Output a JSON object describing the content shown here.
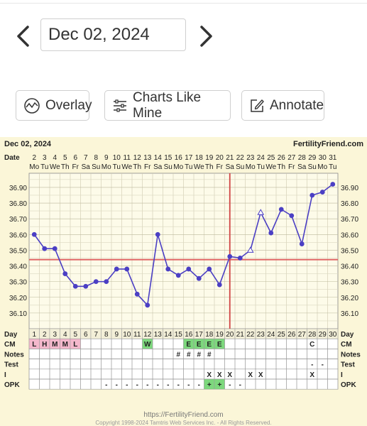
{
  "nav": {
    "date_value": "Dec 02, 2024",
    "prev_icon": "chevron-left-icon",
    "next_icon": "chevron-right-icon"
  },
  "toolbar": {
    "overlay_label": "Overlay",
    "overlay_icon": "overlay-chart-icon",
    "charts_like_mine_label": "Charts Like Mine",
    "charts_like_mine_icon": "sliders-icon",
    "annotate_label": "Annotate",
    "annotate_icon": "edit-icon"
  },
  "colors": {
    "chart_bg": "#fbf6d8",
    "line": "#4b3fc4",
    "coverline": "#e06060",
    "ovulation_line": "#d04545",
    "menses": "#f4b8cc",
    "fertile": "#7dd87d"
  },
  "chart_data": {
    "type": "line",
    "header_left": "Dec 02, 2024",
    "header_right": "FertilityFriend.com",
    "date_row_label": "Date",
    "dates": [
      "2",
      "3",
      "4",
      "5",
      "6",
      "7",
      "8",
      "9",
      "10",
      "11",
      "12",
      "13",
      "14",
      "15",
      "16",
      "17",
      "18",
      "19",
      "20",
      "21",
      "22",
      "23",
      "24",
      "25",
      "26",
      "27",
      "28",
      "29",
      "30",
      "31"
    ],
    "weekdays": [
      "Mo",
      "Tu",
      "We",
      "Th",
      "Fr",
      "Sa",
      "Su",
      "Mo",
      "Tu",
      "We",
      "Th",
      "Fr",
      "Sa",
      "Su",
      "Mo",
      "Tu",
      "We",
      "Th",
      "Fr",
      "Sa",
      "Su",
      "Mo",
      "Tu",
      "We",
      "Th",
      "Fr",
      "Sa",
      "Su",
      "Mo",
      "Tu"
    ],
    "days": [
      "1",
      "2",
      "3",
      "4",
      "5",
      "6",
      "7",
      "8",
      "9",
      "10",
      "11",
      "12",
      "13",
      "14",
      "15",
      "16",
      "17",
      "18",
      "19",
      "20",
      "21",
      "22",
      "23",
      "24",
      "25",
      "26",
      "27",
      "28",
      "29",
      "30"
    ],
    "y_ticks": [
      "36.90",
      "36.80",
      "36.70",
      "36.60",
      "36.50",
      "36.40",
      "36.30",
      "36.20",
      "36.10"
    ],
    "ylim": [
      36.0,
      36.99
    ],
    "temps": [
      36.6,
      36.51,
      36.51,
      36.35,
      36.27,
      36.27,
      36.3,
      36.3,
      36.38,
      36.38,
      36.22,
      36.15,
      36.6,
      36.38,
      36.34,
      36.38,
      36.32,
      36.38,
      36.28,
      36.46,
      36.45,
      36.5,
      36.74,
      36.61,
      36.76,
      36.72,
      36.54,
      36.85,
      36.87,
      36.92
    ],
    "open_points": [
      21,
      22
    ],
    "coverline": 36.44,
    "ovulation_day": 19,
    "rows": [
      {
        "label": "Day"
      },
      {
        "label": "CM",
        "cells": [
          "L",
          "H",
          "M",
          "M",
          "L",
          "",
          "",
          "",
          "",
          "",
          "",
          "W",
          "",
          "",
          "",
          "E",
          "E",
          "E",
          "E",
          "",
          "",
          "",
          "",
          "",
          "",
          "",
          "",
          "C",
          "",
          ""
        ]
      },
      {
        "label": "Notes",
        "cells": [
          "",
          "",
          "",
          "",
          "",
          "",
          "",
          "",
          "",
          "",
          "",
          "",
          "",
          "",
          "#",
          "#",
          "#",
          "#",
          "",
          "",
          "",
          "",
          "",
          "",
          "",
          "",
          "",
          "",
          "",
          ""
        ]
      },
      {
        "label": "Test",
        "cells": [
          "",
          "",
          "",
          "",
          "",
          "",
          "",
          "",
          "",
          "",
          "",
          "",
          "",
          "",
          "",
          "",
          "",
          "",
          "",
          "",
          "",
          "",
          "",
          "",
          "",
          "",
          "",
          "-",
          "-",
          ""
        ]
      },
      {
        "label": "I",
        "cells": [
          "",
          "",
          "",
          "",
          "",
          "",
          "",
          "",
          "",
          "",
          "",
          "",
          "",
          "",
          "",
          "",
          "",
          "X",
          "X",
          "X",
          "",
          "X",
          "X",
          "",
          "",
          "",
          "",
          "X",
          "",
          ""
        ]
      },
      {
        "label": "OPK",
        "cells": [
          "",
          "",
          "",
          "",
          "",
          "",
          "",
          "-",
          "-",
          "-",
          "-",
          "-",
          "-",
          "-",
          "-",
          "-",
          "-",
          "+",
          "+",
          "-",
          "-",
          "",
          "",
          "",
          "",
          "",
          "",
          "",
          "",
          ""
        ]
      }
    ],
    "cm_colors": [
      "pink",
      "pink",
      "pink",
      "pink",
      "pink",
      "",
      "",
      "",
      "",
      "",
      "",
      "green",
      "",
      "",
      "",
      "green",
      "green",
      "green",
      "green",
      "",
      "",
      "",
      "",
      "",
      "",
      "",
      "",
      "",
      "",
      ""
    ],
    "opk_colors": [
      "",
      "",
      "",
      "",
      "",
      "",
      "",
      "",
      "",
      "",
      "",
      "",
      "",
      "",
      "",
      "",
      "",
      "green",
      "green",
      "",
      "",
      "",
      "",
      "",
      "",
      "",
      "",
      "",
      "",
      ""
    ],
    "grid": true
  },
  "footer": {
    "url": "https://FertilityFriend.com",
    "copyright": "Copyright 1998-2024 Tamtris Web Services Inc. - All Rights Reserved."
  }
}
